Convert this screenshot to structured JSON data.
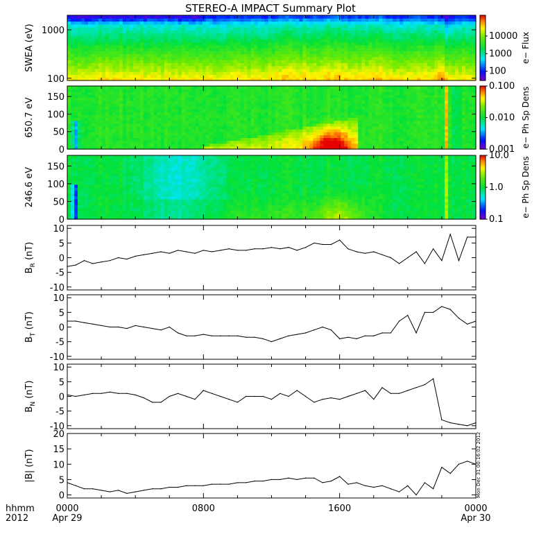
{
  "title": "STEREO-A IMPACT Summary Plot",
  "stamp": "Mon Dec 31 00:16:02 2012",
  "time_axis": {
    "left_header": [
      "hhmm",
      "2012"
    ],
    "ticks": [
      {
        "t": 0,
        "labels": [
          "0000",
          "Apr 29"
        ]
      },
      {
        "t": 8,
        "labels": [
          "0800",
          ""
        ]
      },
      {
        "t": 16,
        "labels": [
          "1600",
          ""
        ]
      },
      {
        "t": 24,
        "labels": [
          "0000",
          "Apr 30"
        ]
      }
    ],
    "range_hours": [
      0,
      24
    ]
  },
  "chart_data": [
    {
      "type": "heatmap",
      "panel": "swea",
      "ylabel": "SWEA (eV)",
      "yscale": "log",
      "ylim": [
        90,
        2000
      ],
      "yticks": [
        {
          "v": 1000,
          "label": "1000"
        },
        {
          "v": 100,
          "label": "100"
        }
      ],
      "colorbar": {
        "scale": "log",
        "range": [
          30,
          150000
        ],
        "ticks": [
          {
            "v": 10000,
            "label": "10000"
          },
          {
            "v": 1000,
            "label": "1000"
          },
          {
            "v": 100,
            "label": "100"
          }
        ],
        "label": "e− Flux"
      }
    },
    {
      "type": "heatmap",
      "panel": "pad650",
      "ylabel": "650.7 eV",
      "ylim": [
        0,
        180
      ],
      "yticks": [
        {
          "v": 0,
          "label": "0"
        },
        {
          "v": 50,
          "label": "50"
        },
        {
          "v": 100,
          "label": "100"
        },
        {
          "v": 150,
          "label": "150"
        }
      ],
      "colorbar": {
        "scale": "log",
        "range": [
          0.001,
          0.1
        ],
        "ticks": [
          {
            "v": 0.1,
            "label": "0.100"
          },
          {
            "v": 0.01,
            "label": "0.010"
          },
          {
            "v": 0.001,
            "label": "0.001"
          }
        ],
        "label": "e− Ph Sp Dens"
      }
    },
    {
      "type": "heatmap",
      "panel": "pad246",
      "ylabel": "246.6 eV",
      "ylim": [
        0,
        180
      ],
      "yticks": [
        {
          "v": 0,
          "label": "0"
        },
        {
          "v": 50,
          "label": "50"
        },
        {
          "v": 100,
          "label": "100"
        },
        {
          "v": 150,
          "label": "150"
        }
      ],
      "colorbar": {
        "scale": "log",
        "range": [
          0.1,
          10
        ],
        "ticks": [
          {
            "v": 10,
            "label": "10.0"
          },
          {
            "v": 1,
            "label": "1.0"
          },
          {
            "v": 0.1,
            "label": "0.1"
          }
        ],
        "label": "e− Ph Sp Dens"
      }
    },
    {
      "type": "line",
      "panel": "br",
      "ylabel_main": "B",
      "ylabel_sub": "R",
      "ylabel_unit": " (nT)",
      "ylim": [
        -11,
        11
      ],
      "yticks": [
        -10,
        -5,
        0,
        5,
        10
      ],
      "x": [
        0,
        0.5,
        1,
        1.5,
        2,
        2.5,
        3,
        3.5,
        4,
        4.5,
        5,
        5.5,
        6,
        6.5,
        7,
        7.5,
        8,
        8.5,
        9,
        9.5,
        10,
        10.5,
        11,
        11.5,
        12,
        12.5,
        13,
        13.5,
        14,
        14.5,
        15,
        15.5,
        16,
        16.5,
        17,
        17.5,
        18,
        18.5,
        19,
        19.5,
        20,
        20.5,
        21,
        21.5,
        22,
        22.5,
        23,
        23.5,
        24
      ],
      "values": [
        -3,
        -2.5,
        -1,
        -2,
        -1.5,
        -1,
        0,
        -0.5,
        0.5,
        1,
        1.5,
        2,
        1.5,
        2.5,
        2,
        1.5,
        2.5,
        2,
        2.5,
        3,
        2.5,
        2.5,
        3,
        3,
        3.5,
        3,
        3.5,
        2.5,
        3.5,
        5,
        4.5,
        4.5,
        6,
        3,
        2,
        1.5,
        2,
        1,
        0,
        -2,
        0,
        2,
        -2,
        3,
        -1,
        8,
        -1,
        7,
        7
      ]
    },
    {
      "type": "line",
      "panel": "bt",
      "ylabel_main": "B",
      "ylabel_sub": "T",
      "ylabel_unit": " (nT)",
      "ylim": [
        -11,
        11
      ],
      "yticks": [
        -10,
        -5,
        0,
        5,
        10
      ],
      "x": [
        0,
        0.5,
        1,
        1.5,
        2,
        2.5,
        3,
        3.5,
        4,
        4.5,
        5,
        5.5,
        6,
        6.5,
        7,
        7.5,
        8,
        8.5,
        9,
        9.5,
        10,
        10.5,
        11,
        11.5,
        12,
        12.5,
        13,
        13.5,
        14,
        14.5,
        15,
        15.5,
        16,
        16.5,
        17,
        17.5,
        18,
        18.5,
        19,
        19.5,
        20,
        20.5,
        21,
        21.5,
        22,
        22.5,
        23,
        23.5,
        24
      ],
      "values": [
        2,
        2,
        1.5,
        1,
        0.5,
        0,
        0,
        -0.5,
        0.5,
        0,
        -0.5,
        -1,
        0,
        -2,
        -3,
        -3,
        -2.5,
        -3,
        -3,
        -3,
        -3,
        -3.5,
        -3.5,
        -4,
        -5,
        -4,
        -3,
        -2.5,
        -2,
        -1,
        0,
        -1,
        -4,
        -3.5,
        -4,
        -3,
        -3,
        -2,
        -2,
        2,
        4,
        -2,
        5,
        5,
        7,
        6,
        3,
        1,
        2
      ]
    },
    {
      "type": "line",
      "panel": "bn",
      "ylabel_main": "B",
      "ylabel_sub": "N",
      "ylabel_unit": " (nT)",
      "ylim": [
        -11,
        11
      ],
      "yticks": [
        -10,
        -5,
        0,
        5,
        10
      ],
      "x": [
        0,
        0.5,
        1,
        1.5,
        2,
        2.5,
        3,
        3.5,
        4,
        4.5,
        5,
        5.5,
        6,
        6.5,
        7,
        7.5,
        8,
        8.5,
        9,
        9.5,
        10,
        10.5,
        11,
        11.5,
        12,
        12.5,
        13,
        13.5,
        14,
        14.5,
        15,
        15.5,
        16,
        16.5,
        17,
        17.5,
        18,
        18.5,
        19,
        19.5,
        20,
        20.5,
        21,
        21.5,
        22,
        22.5,
        23,
        23.5,
        24
      ],
      "values": [
        0.5,
        0,
        0.5,
        1,
        1,
        1.5,
        1,
        1,
        0.5,
        -0.5,
        -2,
        -2,
        0,
        1,
        0,
        -1,
        2,
        1,
        0,
        -1,
        -2,
        0,
        0,
        0,
        -1,
        1,
        0,
        2,
        0,
        -2,
        -1,
        -0.5,
        -1,
        0,
        1,
        2,
        -1,
        3,
        1,
        1,
        2,
        3,
        4,
        6,
        -8,
        -9,
        -9.5,
        -10,
        -9
      ]
    },
    {
      "type": "line",
      "panel": "bmag",
      "ylabel_main": "|B| (nT)",
      "ylabel_sub": "",
      "ylabel_unit": "",
      "ylim": [
        -1,
        20
      ],
      "yticks": [
        0,
        5,
        10,
        15,
        20
      ],
      "x": [
        0,
        0.5,
        1,
        1.5,
        2,
        2.5,
        3,
        3.5,
        4,
        4.5,
        5,
        5.5,
        6,
        6.5,
        7,
        7.5,
        8,
        8.5,
        9,
        9.5,
        10,
        10.5,
        11,
        11.5,
        12,
        12.5,
        13,
        13.5,
        14,
        14.5,
        15,
        15.5,
        16,
        16.5,
        17,
        17.5,
        18,
        18.5,
        19,
        19.5,
        20,
        20.5,
        21,
        21.5,
        22,
        22.5,
        23,
        23.5,
        24
      ],
      "values": [
        4,
        3,
        2,
        2,
        1.5,
        1,
        1.5,
        0.5,
        1,
        1.5,
        2,
        2,
        2.5,
        2.5,
        3,
        3,
        3,
        3.5,
        3.5,
        3.5,
        4,
        4,
        4.5,
        4.5,
        5,
        5,
        5.5,
        5,
        5.5,
        5.5,
        4,
        4.5,
        6,
        3.5,
        4,
        3,
        2.5,
        3,
        2,
        1,
        3,
        0,
        4,
        2,
        9,
        7,
        10,
        11,
        10
      ]
    }
  ]
}
